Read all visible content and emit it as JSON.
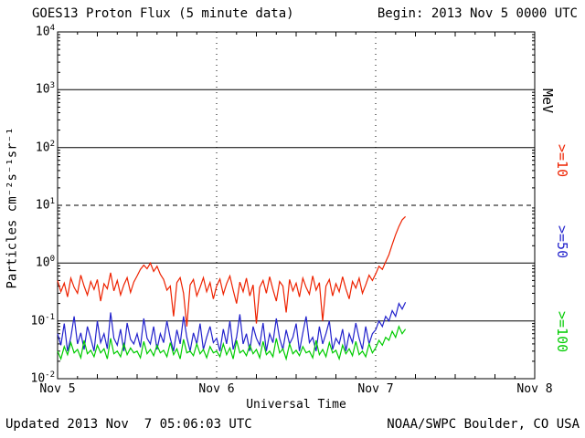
{
  "header": {
    "begin_label": "Begin: 2013 Nov 5 0000 UTC"
  },
  "footer": {
    "updated": "Updated 2013 Nov  7 05:06:03 UTC",
    "source": "NOAA/SWPC Boulder, CO USA"
  },
  "chart_data": {
    "type": "line",
    "title": "GOES13 Proton Flux (5 minute data)",
    "xlabel": "Universal Time",
    "ylabel": "Particles cm⁻²s⁻¹sr⁻¹",
    "right_axis_label": "MeV",
    "x_scale": "hours_from_2013-Nov-5_0000UTC",
    "y_scale": "log10",
    "xlim_hours": [
      0,
      72
    ],
    "ylim": [
      0.01,
      10000
    ],
    "x_ticks": [
      {
        "hour": 0,
        "label": "Nov 5"
      },
      {
        "hour": 24,
        "label": "Nov 6"
      },
      {
        "hour": 48,
        "label": "Nov 7"
      },
      {
        "hour": 72,
        "label": "Nov 8"
      }
    ],
    "y_tick_exponents": [
      4,
      3,
      2,
      1,
      0,
      -1,
      -2
    ],
    "grid": {
      "solid_decades": [
        3,
        2,
        0,
        -1
      ],
      "dashed_decades": [
        1
      ],
      "vertical_dashed_hours": [
        24,
        48
      ]
    },
    "series": [
      {
        "key": "ge10",
        "name": ">=10 MeV",
        "label": ">=10",
        "color": "#EE2200",
        "t0_hours": 0,
        "dt_hours": 0.5,
        "values": [
          0.5,
          0.32,
          0.45,
          0.26,
          0.55,
          0.38,
          0.3,
          0.62,
          0.4,
          0.28,
          0.48,
          0.35,
          0.52,
          0.22,
          0.44,
          0.36,
          0.68,
          0.33,
          0.5,
          0.28,
          0.42,
          0.56,
          0.31,
          0.47,
          0.6,
          0.78,
          0.92,
          0.8,
          1.0,
          0.72,
          0.88,
          0.64,
          0.52,
          0.34,
          0.4,
          0.12,
          0.46,
          0.56,
          0.3,
          0.08,
          0.42,
          0.52,
          0.27,
          0.38,
          0.56,
          0.32,
          0.46,
          0.24,
          0.4,
          0.53,
          0.29,
          0.44,
          0.6,
          0.34,
          0.2,
          0.47,
          0.32,
          0.55,
          0.27,
          0.42,
          0.09,
          0.38,
          0.5,
          0.3,
          0.58,
          0.35,
          0.22,
          0.48,
          0.4,
          0.14,
          0.52,
          0.33,
          0.45,
          0.26,
          0.55,
          0.38,
          0.29,
          0.6,
          0.34,
          0.46,
          0.1,
          0.4,
          0.52,
          0.27,
          0.44,
          0.32,
          0.58,
          0.36,
          0.24,
          0.48,
          0.37,
          0.55,
          0.3,
          0.42,
          0.62,
          0.5,
          0.65,
          0.88,
          0.78,
          1.05,
          1.4,
          2.1,
          3.1,
          4.3,
          5.6,
          6.4
        ]
      },
      {
        "key": "ge50",
        "name": ">=50 MeV",
        "label": ">=50",
        "color": "#2222CC",
        "t0_hours": 0,
        "dt_hours": 0.5,
        "values": [
          0.06,
          0.038,
          0.09,
          0.03,
          0.052,
          0.12,
          0.04,
          0.062,
          0.032,
          0.08,
          0.05,
          0.03,
          0.1,
          0.042,
          0.06,
          0.033,
          0.14,
          0.05,
          0.038,
          0.072,
          0.03,
          0.092,
          0.048,
          0.04,
          0.06,
          0.035,
          0.11,
          0.05,
          0.04,
          0.08,
          0.032,
          0.06,
          0.042,
          0.1,
          0.05,
          0.03,
          0.07,
          0.04,
          0.12,
          0.052,
          0.03,
          0.062,
          0.04,
          0.09,
          0.032,
          0.052,
          0.08,
          0.042,
          0.05,
          0.03,
          0.072,
          0.04,
          0.1,
          0.032,
          0.052,
          0.13,
          0.04,
          0.06,
          0.03,
          0.08,
          0.05,
          0.038,
          0.092,
          0.03,
          0.06,
          0.042,
          0.11,
          0.05,
          0.032,
          0.07,
          0.04,
          0.052,
          0.09,
          0.03,
          0.062,
          0.12,
          0.042,
          0.052,
          0.03,
          0.08,
          0.04,
          0.06,
          0.1,
          0.032,
          0.05,
          0.04,
          0.072,
          0.03,
          0.06,
          0.042,
          0.092,
          0.05,
          0.032,
          0.08,
          0.04,
          0.06,
          0.07,
          0.1,
          0.08,
          0.12,
          0.1,
          0.15,
          0.12,
          0.2,
          0.16,
          0.21
        ]
      },
      {
        "key": "ge100",
        "name": ">=100 MeV",
        "label": ">=100",
        "color": "#00CC00",
        "t0_hours": 0,
        "dt_hours": 0.5,
        "values": [
          0.03,
          0.022,
          0.036,
          0.026,
          0.042,
          0.028,
          0.032,
          0.023,
          0.046,
          0.027,
          0.031,
          0.024,
          0.038,
          0.028,
          0.033,
          0.022,
          0.05,
          0.027,
          0.03,
          0.024,
          0.04,
          0.026,
          0.034,
          0.028,
          0.03,
          0.023,
          0.044,
          0.027,
          0.032,
          0.025,
          0.038,
          0.028,
          0.031,
          0.024,
          0.042,
          0.026,
          0.033,
          0.022,
          0.048,
          0.028,
          0.03,
          0.025,
          0.04,
          0.027,
          0.032,
          0.023,
          0.036,
          0.028,
          0.03,
          0.024,
          0.04,
          0.026,
          0.034,
          0.022,
          0.046,
          0.028,
          0.031,
          0.025,
          0.038,
          0.027,
          0.032,
          0.023,
          0.044,
          0.026,
          0.03,
          0.024,
          0.05,
          0.028,
          0.033,
          0.022,
          0.04,
          0.027,
          0.031,
          0.025,
          0.036,
          0.028,
          0.03,
          0.023,
          0.046,
          0.026,
          0.032,
          0.024,
          0.042,
          0.028,
          0.031,
          0.022,
          0.038,
          0.027,
          0.033,
          0.025,
          0.044,
          0.026,
          0.03,
          0.024,
          0.04,
          0.028,
          0.034,
          0.046,
          0.038,
          0.052,
          0.046,
          0.066,
          0.052,
          0.08,
          0.06,
          0.072
        ]
      }
    ]
  }
}
